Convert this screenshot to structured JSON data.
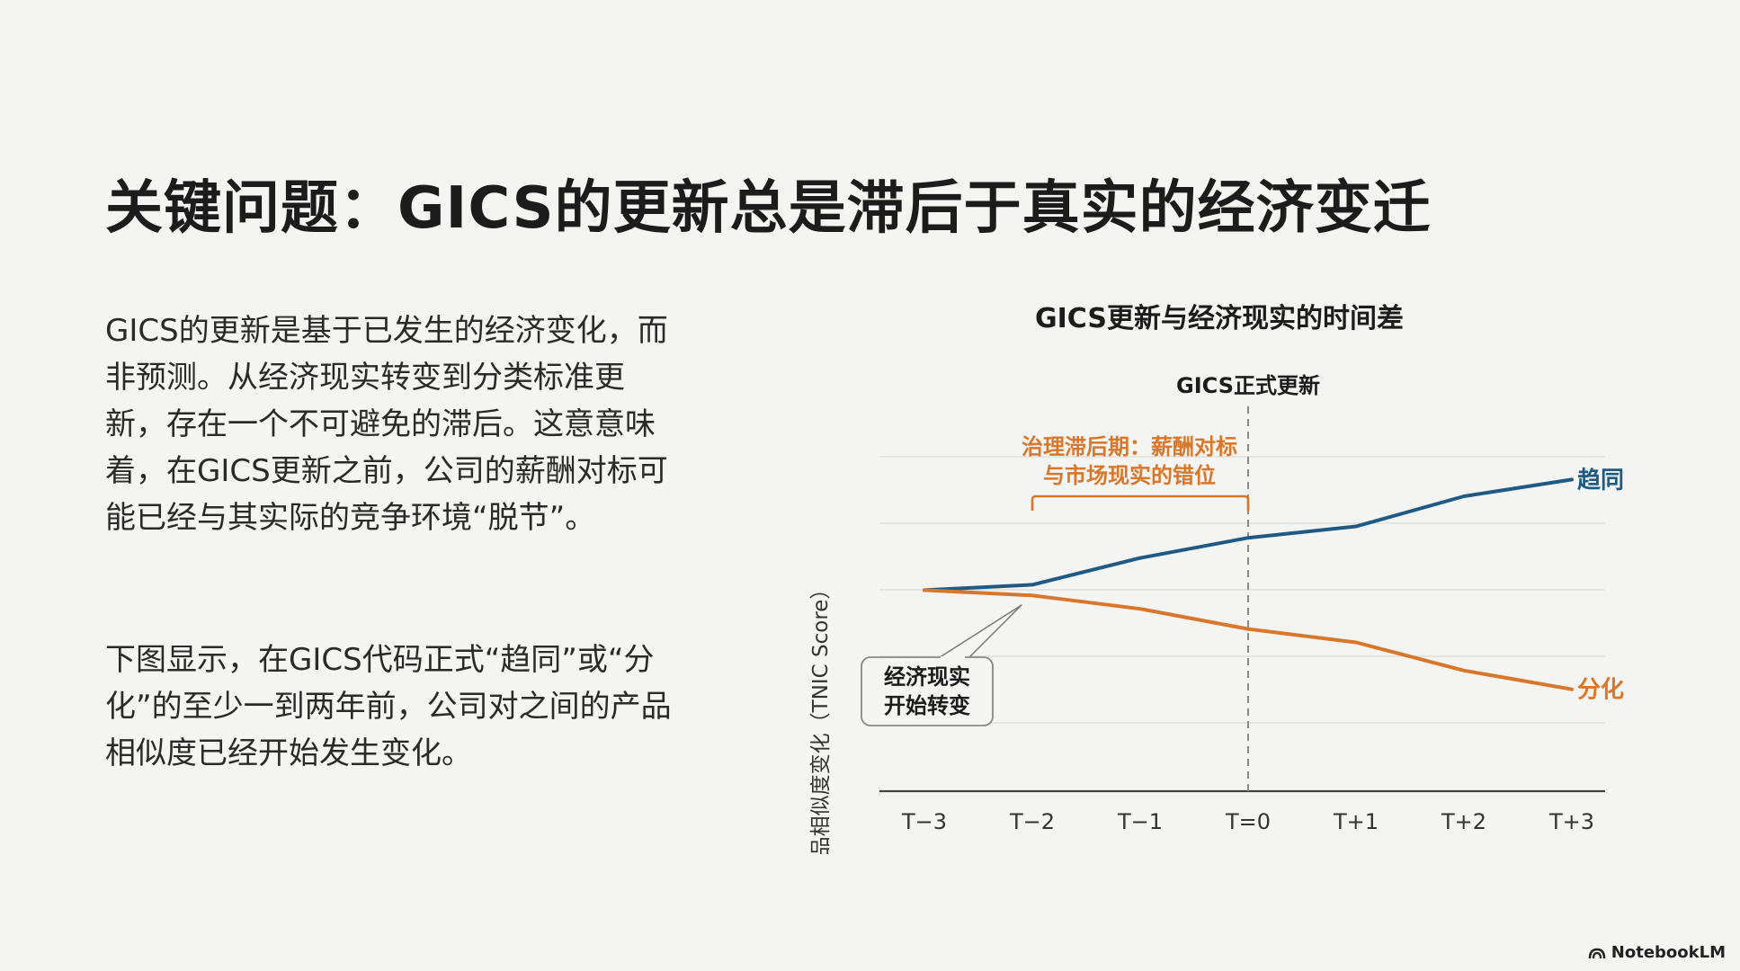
{
  "slide": {
    "title": "关键问题：GICS的更新总是滞后于真实的经济变迁",
    "paragraph1": "GICS的更新是基于已发生的经济变化，而非预测。从经济现实转变到分类标准更新，存在一个不可避免的滞后。这意意味着，在GICS更新之前，公司的薪酬对标可能已经与其实际的竞争环境“脱节”。",
    "paragraph2": "下图显示，在GICS代码正式“趋同”或“分化”的至少一到两年前，公司对之间的产品相似度已经开始发生变化。"
  },
  "chart_data": {
    "type": "line",
    "title": "GICS更新与经济现实的时间差",
    "ylabel": "产品相似度变化（TNIC Score）",
    "categories": [
      "T−3",
      "T−2",
      "T−1",
      "T=0",
      "T+1",
      "T+2",
      "T+3"
    ],
    "ylim": [
      -3,
      2.5
    ],
    "grid": true,
    "series": [
      {
        "name": "趋同",
        "color": "#1f5a85",
        "values": [
          0,
          0.08,
          0.48,
          0.78,
          0.95,
          1.4,
          1.65
        ]
      },
      {
        "name": "分化",
        "color": "#d9762a",
        "values": [
          0,
          -0.08,
          -0.28,
          -0.58,
          -0.78,
          -1.2,
          -1.48
        ]
      }
    ],
    "annotations": {
      "vline_x": "T=0",
      "vline_label": "GICS正式更新",
      "lag_label_line1": "治理滞后期：薪酬对标",
      "lag_label_line2": "与市场现实的错位",
      "lag_range": [
        "T−2",
        "T=0"
      ],
      "callout_line1": "经济现实",
      "callout_line2": "开始转变"
    }
  },
  "branding": {
    "logo_text": "NotebookLM"
  }
}
